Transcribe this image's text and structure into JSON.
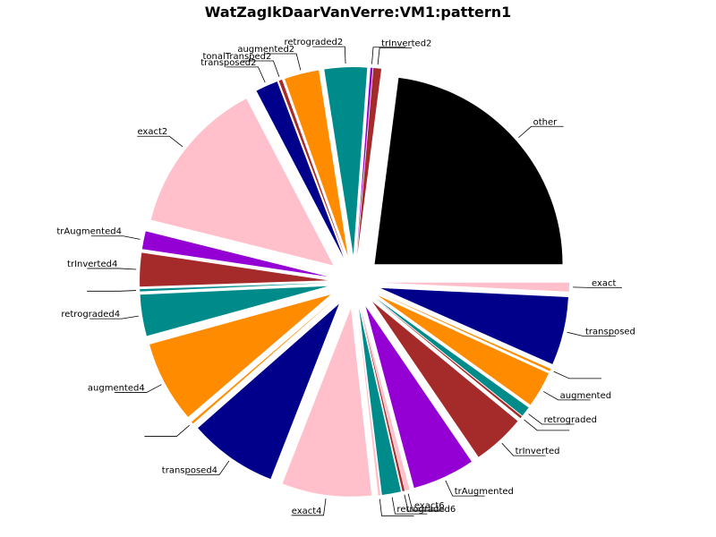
{
  "chart_data": {
    "type": "pie",
    "title": "WatZagIkDaarVanVerre:VM1:pattern1",
    "start_angle_deg": 0,
    "direction": "counterclockwise",
    "slices": [
      {
        "label": "other",
        "value": 23.9,
        "color": "#000000"
      },
      {
        "label": "trInverted2",
        "value": 0.7,
        "color": "#a52a2a"
      },
      {
        "label": "",
        "value": 0.2,
        "color": "#9400d3"
      },
      {
        "label": "retrograded2",
        "value": 3.8,
        "color": "#008b8b"
      },
      {
        "label": "augmented2",
        "value": 3.1,
        "color": "#ff8c00"
      },
      {
        "label": "tonalTransped2",
        "value": 0.3,
        "color": "#a52a2a"
      },
      {
        "label": "transposed2",
        "value": 2.0,
        "color": "#00008b"
      },
      {
        "label": "exact2",
        "value": 14.0,
        "color": "#ffc0cb"
      },
      {
        "label": "trAugmented4",
        "value": 1.6,
        "color": "#9400d3"
      },
      {
        "label": "trInverted4",
        "value": 3.0,
        "color": "#a52a2a"
      },
      {
        "label": "",
        "value": 0.2,
        "color": "#008b8b"
      },
      {
        "label": "retrograded4",
        "value": 3.7,
        "color": "#008b8b"
      },
      {
        "label": "augmented4",
        "value": 7.3,
        "color": "#ff8c00"
      },
      {
        "label": "",
        "value": 0.2,
        "color": "#ff8c00"
      },
      {
        "label": "transposed4",
        "value": 7.9,
        "color": "#00008b"
      },
      {
        "label": "exact4",
        "value": 8.0,
        "color": "#ffc0cb"
      },
      {
        "label": "",
        "value": 0.2,
        "color": "#ffc0cb"
      },
      {
        "label": "retrograded6",
        "value": 1.7,
        "color": "#008b8b"
      },
      {
        "label": "",
        "value": 0.2,
        "color": "#a52a2a"
      },
      {
        "label": "exact6",
        "value": 0.4,
        "color": "#ffc0cb"
      },
      {
        "label": "trAugmented",
        "value": 5.6,
        "color": "#9400d3"
      },
      {
        "label": "trInverted",
        "value": 4.7,
        "color": "#a52a2a"
      },
      {
        "label": "",
        "value": 0.2,
        "color": "#a52a2a"
      },
      {
        "label": "retrograded",
        "value": 0.9,
        "color": "#008b8b"
      },
      {
        "label": "augmented",
        "value": 3.2,
        "color": "#ff8c00"
      },
      {
        "label": "",
        "value": 0.2,
        "color": "#ff8c00"
      },
      {
        "label": "transposed",
        "value": 6.1,
        "color": "#00008b"
      },
      {
        "label": "exact",
        "value": 0.8,
        "color": "#ffc0cb"
      }
    ]
  }
}
